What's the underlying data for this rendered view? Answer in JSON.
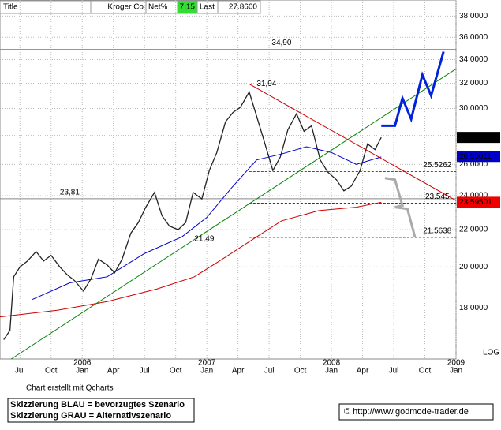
{
  "header": {
    "title": "Title",
    "name": "Kroger Co",
    "net_label": "Net%",
    "net": 7.15,
    "last_label": "Last",
    "last": "27.8600"
  },
  "chart_data": {
    "type": "line",
    "log_scale": true,
    "grid": true,
    "axis_note": "LOG",
    "xlim": [
      2005.34,
      2009.0
    ],
    "ylim": [
      15.8,
      39.6
    ],
    "yticks": [
      {
        "value": 18,
        "label": "18.0000"
      },
      {
        "value": 20,
        "label": "20.0000"
      },
      {
        "value": 22,
        "label": "22.0000"
      },
      {
        "value": 24,
        "label": "24.0000"
      },
      {
        "value": 26,
        "label": "26.0000"
      },
      {
        "value": 28,
        "label": "28.0000"
      },
      {
        "value": 30,
        "label": "30.0000"
      },
      {
        "value": 32,
        "label": "32.0000"
      },
      {
        "value": 34,
        "label": "34.0000"
      },
      {
        "value": 36,
        "label": "36.0000"
      },
      {
        "value": 38,
        "label": "38.0000"
      }
    ],
    "xticks": [
      {
        "value": 2005.5,
        "label": "Jul"
      },
      {
        "value": 2005.75,
        "label": "Oct"
      },
      {
        "value": 2006.0,
        "label": "Jan"
      },
      {
        "value": 2006.25,
        "label": "Apr"
      },
      {
        "value": 2006.5,
        "label": "Jul"
      },
      {
        "value": 2006.75,
        "label": "Oct"
      },
      {
        "value": 2007.0,
        "label": "Jan"
      },
      {
        "value": 2007.25,
        "label": "Apr"
      },
      {
        "value": 2007.5,
        "label": "Jul"
      },
      {
        "value": 2007.75,
        "label": "Oct"
      },
      {
        "value": 2008.0,
        "label": "Jan"
      },
      {
        "value": 2008.25,
        "label": "Apr"
      },
      {
        "value": 2008.5,
        "label": "Jul"
      },
      {
        "value": 2008.75,
        "label": "Oct"
      },
      {
        "value": 2009.0,
        "label": "Jan"
      }
    ],
    "year_labels": [
      2006,
      2007,
      2008,
      2009
    ],
    "series": [
      {
        "name": "Kroger Co",
        "color": "#222222",
        "width": 1.3,
        "x": [
          2005.37,
          2005.42,
          2005.45,
          2005.5,
          2005.56,
          2005.63,
          2005.69,
          2005.75,
          2005.82,
          2005.88,
          2005.94,
          2006.01,
          2006.07,
          2006.13,
          2006.2,
          2006.26,
          2006.32,
          2006.39,
          2006.45,
          2006.51,
          2006.58,
          2006.64,
          2006.7,
          2006.77,
          2006.83,
          2006.89,
          2006.96,
          2007.02,
          2007.08,
          2007.15,
          2007.21,
          2007.27,
          2007.34,
          2007.4,
          2007.46,
          2007.53,
          2007.59,
          2007.65,
          2007.72,
          2007.78,
          2007.84,
          2007.91,
          2007.97,
          2008.04,
          2008.1,
          2008.16,
          2008.23,
          2008.29,
          2008.35,
          2008.4
        ],
        "values": [
          16.6,
          17.0,
          19.5,
          20.0,
          20.3,
          20.8,
          20.3,
          20.6,
          20.0,
          19.6,
          19.3,
          18.8,
          19.4,
          20.4,
          20.1,
          19.7,
          20.4,
          21.8,
          22.4,
          23.3,
          24.2,
          22.8,
          22.2,
          22.0,
          22.4,
          24.2,
          23.8,
          25.6,
          26.8,
          29.0,
          29.7,
          30.1,
          31.3,
          29.4,
          27.6,
          25.6,
          26.5,
          28.4,
          29.6,
          28.3,
          28.7,
          26.3,
          25.5,
          25.0,
          24.3,
          24.6,
          25.6,
          27.4,
          27.0,
          27.86
        ]
      },
      {
        "color": "#0000cc",
        "width": 1,
        "x": [
          2005.6,
          2005.9,
          2006.2,
          2006.5,
          2006.8,
          2007.0,
          2007.2,
          2007.4,
          2007.6,
          2007.8,
          2008.0,
          2008.2,
          2008.4
        ],
        "values": [
          18.4,
          19.2,
          19.5,
          20.7,
          21.6,
          22.7,
          24.5,
          26.3,
          26.7,
          27.2,
          26.8,
          26.0,
          26.5
        ]
      },
      {
        "color": "#cc0000",
        "width": 1,
        "x": [
          2005.34,
          2005.8,
          2006.2,
          2006.6,
          2006.9,
          2007.1,
          2007.4,
          2007.6,
          2007.9,
          2008.2,
          2008.4
        ],
        "values": [
          17.6,
          17.9,
          18.3,
          18.9,
          19.5,
          20.3,
          21.6,
          22.5,
          23.1,
          23.3,
          23.6
        ]
      },
      {
        "color": "#008800",
        "width": 1,
        "x": [
          2005.43,
          2009.0
        ],
        "values": [
          15.8,
          33.2
        ]
      },
      {
        "color": "#cc0000",
        "width": 1,
        "x": [
          2007.34,
          2009.0
        ],
        "values": [
          31.94,
          23.7
        ]
      },
      {
        "color": "#0022dd",
        "width": 3,
        "x": [
          2008.4,
          2008.51,
          2008.57,
          2008.64,
          2008.73,
          2008.8,
          2008.9
        ],
        "values": [
          28.7,
          28.7,
          30.8,
          29.2,
          32.7,
          31.0,
          34.7
        ]
      },
      {
        "color": "#aaaaaa",
        "width": 3,
        "x": [
          2008.43,
          2008.51,
          2008.57,
          2008.51,
          2008.61,
          2008.67
        ],
        "values": [
          25.1,
          25.0,
          23.4,
          23.3,
          23.2,
          21.6
        ]
      }
    ],
    "levels": [
      {
        "value": 34.9,
        "label": "34,90",
        "color": "#888888",
        "from": 2005.34,
        "dash": false,
        "at": 2007.6
      },
      {
        "value": 23.81,
        "label": "23,81",
        "color": "#888888",
        "from": 2005.34,
        "dash": false,
        "at": 2005.9
      },
      {
        "value": 25.5262,
        "label": "25.5262",
        "color": "#008800",
        "from": 2007.34,
        "dash": true,
        "at": 2008.85
      },
      {
        "value": 23.545,
        "label": "23.545",
        "color": "#880088",
        "from": 2007.34,
        "dash": true,
        "at": 2008.85
      },
      {
        "value": 21.5638,
        "label": "21.5638",
        "color": "#008800",
        "from": 2007.34,
        "dash": true,
        "at": 2008.85
      }
    ],
    "annotations": [
      {
        "x": 2007.4,
        "value": 31.94,
        "label": "31,94"
      },
      {
        "x": 2006.9,
        "value": 21.49,
        "label": "21,49"
      }
    ],
    "price_tags": [
      {
        "value": 27.86,
        "label": "27.8600",
        "bg": "#000000",
        "fg": "#ffffff"
      },
      {
        "value": 26.53611,
        "label": "26.53611",
        "bg": "#0000cc",
        "fg": "#ffffff"
      },
      {
        "value": 23.59501,
        "label": "23.59501",
        "bg": "#ee0000",
        "fg": "#ffffff"
      }
    ]
  },
  "footer": {
    "credit": "Chart erstellt mit Qcharts",
    "legend": [
      "Skizzierung BLAU = bevorzugtes Szenario",
      "Skizzierung GRAU = Alternativszenario"
    ],
    "copyright": "© http://www.godmode-trader.de"
  }
}
